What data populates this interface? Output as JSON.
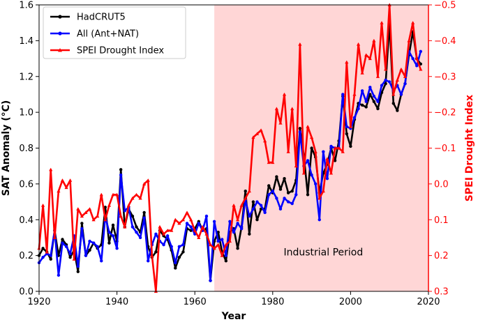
{
  "chart_data": {
    "type": "line",
    "xlabel": "Year",
    "ylabel_left": "SAT Anomaly (°C)",
    "ylabel_right": "SPEI Drought Index",
    "xlim": [
      1920,
      2020
    ],
    "ylim_left": [
      0.0,
      1.6
    ],
    "ylim_right": [
      0.3,
      -0.5
    ],
    "x_ticks": [
      1920,
      1940,
      1960,
      1980,
      2000,
      2020
    ],
    "y_ticks_left": [
      0.0,
      0.2,
      0.4,
      0.6,
      0.8,
      1.0,
      1.2,
      1.4,
      1.6
    ],
    "y_ticks_right": [
      0.3,
      0.2,
      0.1,
      0.0,
      -0.1,
      -0.2,
      -0.3,
      -0.4,
      -0.5
    ],
    "tick_labels": {
      "x": [
        "1920",
        "1940",
        "1960",
        "1980",
        "2000",
        "2020"
      ],
      "left": [
        "0.0",
        "0.2",
        "0.4",
        "0.6",
        "0.8",
        "1.0",
        "1.2",
        "1.4",
        "1.6"
      ],
      "right": [
        "0.3",
        "0.2",
        "0.1",
        "0.0",
        "−0.1",
        "−0.2",
        "−0.3",
        "−0.4",
        "−0.5"
      ]
    },
    "shaded_region": {
      "x_start": 1965,
      "x_end": 2020,
      "label": "Industrial Period",
      "color": "#ffd6d6"
    },
    "annotation": {
      "text": "Industrial Period",
      "x": 1993,
      "y": 0.22
    },
    "legend": {
      "placement": "top-left",
      "entries": [
        "HadCRUT5",
        "All (Ant+NAT)",
        "SPEI Drought Index"
      ]
    },
    "series": [
      {
        "name": "HadCRUT5",
        "axis": "left",
        "color": "#000000",
        "marker": "circle",
        "x": [
          1920,
          1921,
          1922,
          1923,
          1924,
          1925,
          1926,
          1927,
          1928,
          1929,
          1930,
          1931,
          1932,
          1933,
          1934,
          1935,
          1936,
          1937,
          1938,
          1939,
          1940,
          1941,
          1942,
          1943,
          1944,
          1945,
          1946,
          1947,
          1948,
          1949,
          1950,
          1951,
          1952,
          1953,
          1954,
          1955,
          1956,
          1957,
          1958,
          1959,
          1960,
          1961,
          1962,
          1963,
          1964,
          1965,
          1966,
          1967,
          1968,
          1969,
          1970,
          1971,
          1972,
          1973,
          1974,
          1975,
          1976,
          1977,
          1978,
          1979,
          1980,
          1981,
          1982,
          1983,
          1984,
          1985,
          1986,
          1987,
          1988,
          1989,
          1990,
          1991,
          1992,
          1993,
          1994,
          1995,
          1996,
          1997,
          1998,
          1999,
          2000,
          2001,
          2002,
          2003,
          2004,
          2005,
          2006,
          2007,
          2008,
          2009,
          2010,
          2011,
          2012,
          2013,
          2014,
          2015,
          2016,
          2017,
          2018
        ],
        "values": [
          0.2,
          0.24,
          0.22,
          0.18,
          0.34,
          0.2,
          0.29,
          0.26,
          0.19,
          0.23,
          0.11,
          0.38,
          0.2,
          0.23,
          0.27,
          0.24,
          0.26,
          0.47,
          0.27,
          0.37,
          0.28,
          0.68,
          0.36,
          0.46,
          0.42,
          0.36,
          0.33,
          0.44,
          0.25,
          0.19,
          0.22,
          0.34,
          0.31,
          0.29,
          0.23,
          0.13,
          0.19,
          0.22,
          0.35,
          0.34,
          0.35,
          0.39,
          0.34,
          0.35,
          0.06,
          0.28,
          0.33,
          0.22,
          0.17,
          0.33,
          0.35,
          0.24,
          0.36,
          0.56,
          0.32,
          0.5,
          0.4,
          0.46,
          0.46,
          0.59,
          0.55,
          0.64,
          0.57,
          0.63,
          0.55,
          0.56,
          0.62,
          0.91,
          0.76,
          0.54,
          0.8,
          0.75,
          0.55,
          0.66,
          0.71,
          0.8,
          0.73,
          0.84,
          1.09,
          0.88,
          0.81,
          0.96,
          1.05,
          1.04,
          1.03,
          1.1,
          1.06,
          1.02,
          1.11,
          1.16,
          1.5,
          1.05,
          1.01,
          1.1,
          1.16,
          1.32,
          1.45,
          1.3,
          1.27
        ]
      },
      {
        "name": "All (Ant+NAT)",
        "axis": "left",
        "color": "#0000ff",
        "marker": "circle",
        "x": [
          1920,
          1921,
          1922,
          1923,
          1924,
          1925,
          1926,
          1927,
          1928,
          1929,
          1930,
          1931,
          1932,
          1933,
          1934,
          1935,
          1936,
          1937,
          1938,
          1939,
          1940,
          1941,
          1942,
          1943,
          1944,
          1945,
          1946,
          1947,
          1948,
          1949,
          1950,
          1951,
          1952,
          1953,
          1954,
          1955,
          1956,
          1957,
          1958,
          1959,
          1960,
          1961,
          1962,
          1963,
          1964,
          1965,
          1966,
          1967,
          1968,
          1969,
          1970,
          1971,
          1972,
          1973,
          1974,
          1975,
          1976,
          1977,
          1978,
          1979,
          1980,
          1981,
          1982,
          1983,
          1984,
          1985,
          1986,
          1987,
          1988,
          1989,
          1990,
          1991,
          1992,
          1993,
          1994,
          1995,
          1996,
          1997,
          1998,
          1999,
          2000,
          2001,
          2002,
          2003,
          2004,
          2005,
          2006,
          2007,
          2008,
          2009,
          2010,
          2011,
          2012,
          2013,
          2014,
          2015,
          2016,
          2017,
          2018
        ],
        "values": [
          0.16,
          0.19,
          0.21,
          0.2,
          0.34,
          0.09,
          0.27,
          0.25,
          0.21,
          0.31,
          0.14,
          0.35,
          0.2,
          0.28,
          0.27,
          0.25,
          0.17,
          0.42,
          0.33,
          0.31,
          0.24,
          0.65,
          0.45,
          0.47,
          0.36,
          0.33,
          0.3,
          0.41,
          0.17,
          0.26,
          0.32,
          0.28,
          0.26,
          0.31,
          0.25,
          0.16,
          0.25,
          0.26,
          0.38,
          0.36,
          0.32,
          0.38,
          0.34,
          0.42,
          0.06,
          0.39,
          0.28,
          0.29,
          0.2,
          0.39,
          0.33,
          0.38,
          0.35,
          0.51,
          0.42,
          0.46,
          0.5,
          0.48,
          0.44,
          0.54,
          0.56,
          0.52,
          0.46,
          0.52,
          0.5,
          0.49,
          0.54,
          0.89,
          0.7,
          0.73,
          0.65,
          0.6,
          0.4,
          0.78,
          0.63,
          0.81,
          0.8,
          0.8,
          1.1,
          0.92,
          0.91,
          0.97,
          1.02,
          1.12,
          1.06,
          1.14,
          1.09,
          1.06,
          1.15,
          1.18,
          1.17,
          1.12,
          1.15,
          1.1,
          1.16,
          1.34,
          1.3,
          1.26,
          1.34
        ]
      },
      {
        "name": "SPEI Drought Index",
        "axis": "right",
        "color": "#ff0000",
        "marker": "triangle-up",
        "x": [
          1920,
          1921,
          1922,
          1923,
          1924,
          1925,
          1926,
          1927,
          1928,
          1929,
          1930,
          1931,
          1932,
          1933,
          1934,
          1935,
          1936,
          1937,
          1938,
          1939,
          1940,
          1941,
          1942,
          1943,
          1944,
          1945,
          1946,
          1947,
          1948,
          1949,
          1950,
          1951,
          1952,
          1953,
          1954,
          1955,
          1956,
          1957,
          1958,
          1959,
          1960,
          1961,
          1962,
          1963,
          1964,
          1965,
          1966,
          1967,
          1968,
          1969,
          1970,
          1971,
          1972,
          1973,
          1974,
          1975,
          1976,
          1977,
          1978,
          1979,
          1980,
          1981,
          1982,
          1983,
          1984,
          1985,
          1986,
          1987,
          1988,
          1989,
          1990,
          1991,
          1992,
          1993,
          1994,
          1995,
          1996,
          1997,
          1998,
          1999,
          2000,
          2001,
          2002,
          2003,
          2004,
          2005,
          2006,
          2007,
          2008,
          2009,
          2010,
          2011,
          2012,
          2013,
          2014,
          2015,
          2016,
          2017,
          2018
        ],
        "values": [
          0.18,
          0.06,
          0.19,
          -0.04,
          0.15,
          0.02,
          -0.01,
          0.01,
          -0.01,
          0.21,
          0.07,
          0.09,
          0.08,
          0.07,
          0.1,
          0.09,
          0.03,
          0.1,
          0.06,
          0.03,
          0.03,
          0.09,
          0.12,
          0.06,
          0.04,
          0.03,
          0.04,
          0.0,
          -0.01,
          0.2,
          0.3,
          0.12,
          0.14,
          0.13,
          0.13,
          0.1,
          0.11,
          0.1,
          0.08,
          0.1,
          0.13,
          0.15,
          0.12,
          0.14,
          0.17,
          0.18,
          0.17,
          0.2,
          0.17,
          0.16,
          0.06,
          0.1,
          0.06,
          0.04,
          0.02,
          -0.13,
          -0.14,
          -0.15,
          -0.12,
          -0.06,
          -0.06,
          -0.21,
          -0.17,
          -0.25,
          -0.09,
          -0.21,
          -0.05,
          -0.39,
          -0.03,
          -0.16,
          -0.13,
          -0.09,
          0.04,
          0.02,
          -0.07,
          -0.03,
          -0.1,
          -0.1,
          -0.09,
          -0.34,
          -0.16,
          -0.25,
          -0.39,
          -0.31,
          -0.36,
          -0.35,
          -0.4,
          -0.3,
          -0.45,
          -0.32,
          -0.5,
          -0.25,
          -0.29,
          -0.32,
          -0.3,
          -0.4,
          -0.45,
          -0.35,
          -0.32
        ]
      }
    ]
  }
}
